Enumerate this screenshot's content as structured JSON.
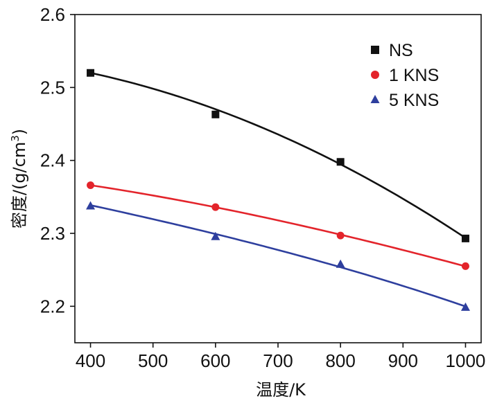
{
  "chart_data": {
    "type": "scatter",
    "title": "",
    "xlabel": "温度/K",
    "ylabel_main": "密度/(g/cm",
    "ylabel_sup": "3",
    "ylabel_close": ")",
    "xlim": [
      375,
      1025
    ],
    "ylim": [
      2.15,
      2.6
    ],
    "xticks": [
      400,
      500,
      600,
      700,
      800,
      900,
      1000
    ],
    "yticks": [
      2.2,
      2.3,
      2.4,
      2.5,
      2.6
    ],
    "xtick_labels": [
      "400",
      "500",
      "600",
      "700",
      "800",
      "900",
      "1000"
    ],
    "ytick_labels": [
      "2.2",
      "2.3",
      "2.4",
      "2.5",
      "2.6"
    ],
    "legend_position": "top-right",
    "series": [
      {
        "name": "NS",
        "marker": "square",
        "color": "#111111",
        "x": [
          400,
          600,
          800,
          1000
        ],
        "y": [
          2.52,
          2.463,
          2.398,
          2.293
        ],
        "fit": [
          2.52,
          2.4702,
          2.3947,
          2.2937
        ]
      },
      {
        "name": "1 KNS",
        "marker": "circle",
        "color": "#e3242b",
        "x": [
          400,
          600,
          800,
          1000
        ],
        "y": [
          2.366,
          2.336,
          2.297,
          2.255
        ],
        "fit": [
          2.366,
          2.3358,
          2.2982,
          2.2548
        ]
      },
      {
        "name": "5 KNS",
        "marker": "triangle",
        "color": "#2e3f9e",
        "x": [
          400,
          600,
          800,
          1000
        ],
        "y": [
          2.338,
          2.296,
          2.258,
          2.199
        ],
        "fit": [
          2.3386,
          2.2991,
          2.2536,
          2.1998
        ]
      }
    ]
  }
}
